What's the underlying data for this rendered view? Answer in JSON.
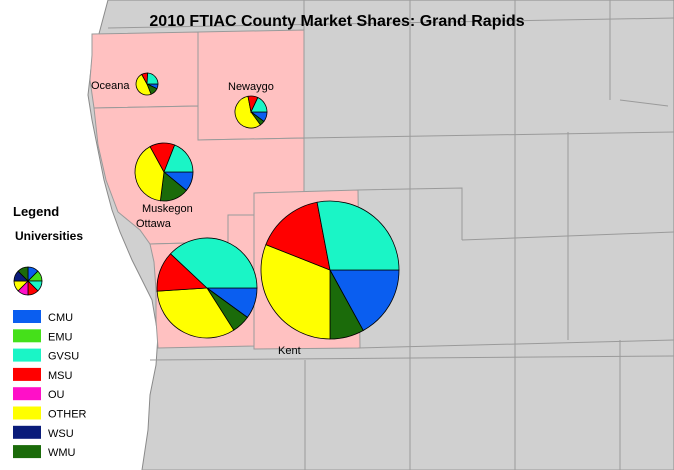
{
  "title": "2010 FTIAC County Market Shares: Grand Rapids",
  "legend": {
    "heading": "Legend",
    "subheading": "Universities",
    "items": [
      {
        "label": "CMU",
        "color": "#0a5ef0"
      },
      {
        "label": "EMU",
        "color": "#45e01a"
      },
      {
        "label": "GVSU",
        "color": "#1af5c6"
      },
      {
        "label": "MSU",
        "color": "#ff0000"
      },
      {
        "label": "OU",
        "color": "#ff10c8"
      },
      {
        "label": "OTHER",
        "color": "#ffff00"
      },
      {
        "label": "WSU",
        "color": "#0a1c7a"
      },
      {
        "label": "WMU",
        "color": "#1b6b0a"
      }
    ]
  },
  "colors": {
    "background": "#ffffff",
    "land": "#d0d0d0",
    "highlight_county": "#ffc1c1",
    "county_border": "#9a9a9a",
    "pie_outline": "#000000"
  },
  "counties": [
    {
      "name": "Oceana",
      "shares": {
        "CMU": 7,
        "GVSU": 24,
        "MSU": 9,
        "WMU": 12,
        "OTHER": 48
      }
    },
    {
      "name": "Newaygo",
      "shares": {
        "CMU": 10,
        "GVSU": 18,
        "MSU": 10,
        "WMU": 5,
        "OTHER": 57
      }
    },
    {
      "name": "Muskegon",
      "shares": {
        "CMU": 11,
        "GVSU": 19,
        "MSU": 14,
        "WMU": 16,
        "OTHER": 40
      }
    },
    {
      "name": "Ottawa",
      "shares": {
        "CMU": 10,
        "GVSU": 38,
        "MSU": 13,
        "WMU": 6,
        "OTHER": 33
      }
    },
    {
      "name": "Kent",
      "shares": {
        "CMU": 17,
        "GVSU": 28,
        "MSU": 16,
        "WMU": 8,
        "OTHER": 31
      }
    }
  ]
}
